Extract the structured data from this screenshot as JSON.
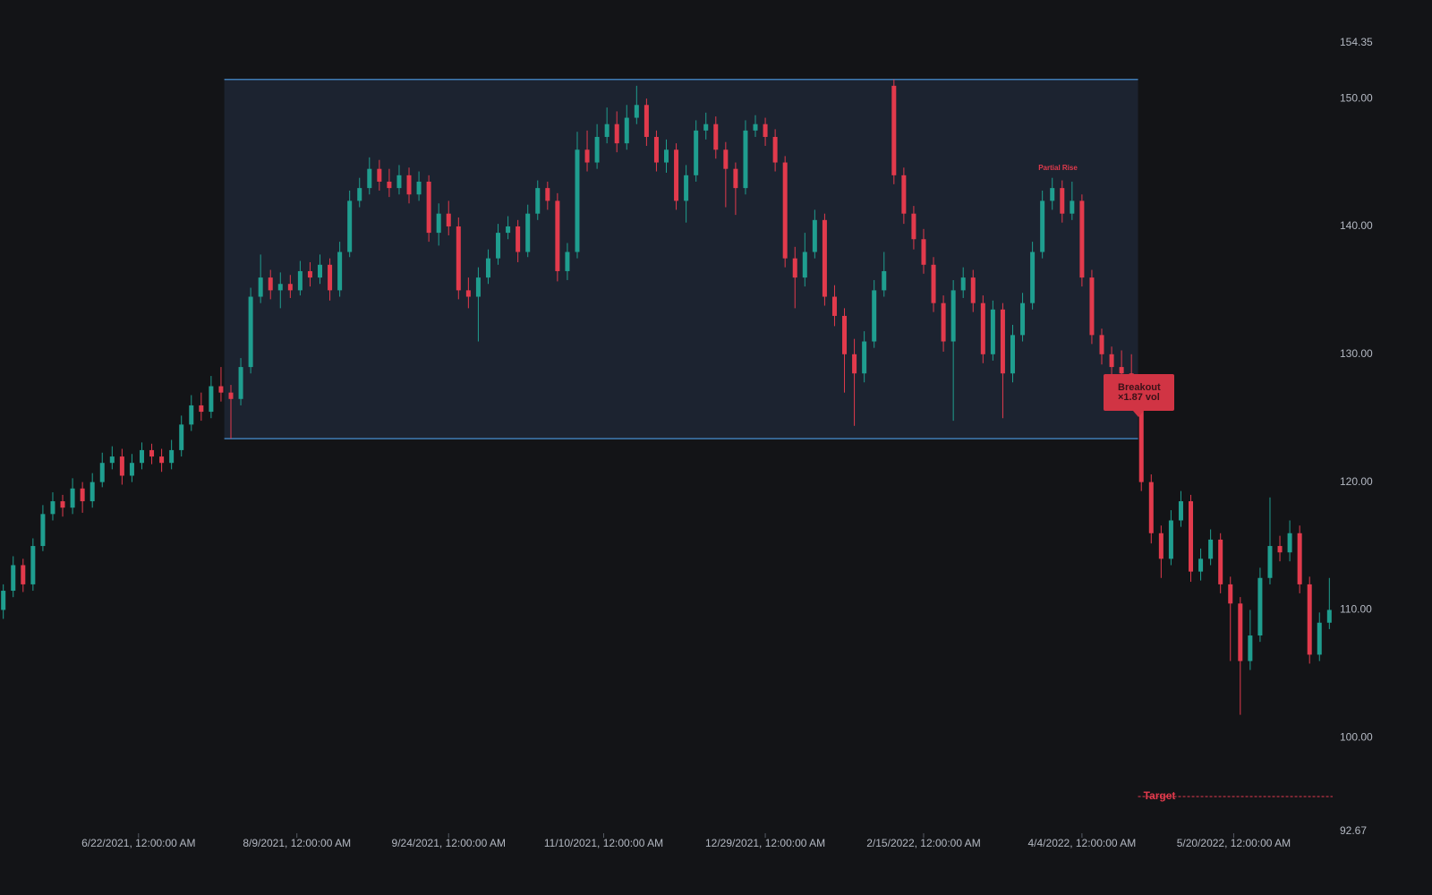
{
  "chart_data": {
    "type": "candlestick",
    "x": [
      "2021-05-12",
      "2021-05-15",
      "2021-05-18",
      "2021-05-21",
      "2021-05-24",
      "2021-05-27",
      "2021-05-30",
      "2021-06-02",
      "2021-06-05",
      "2021-06-08",
      "2021-06-11",
      "2021-06-14",
      "2021-06-17",
      "2021-06-20",
      "2021-06-23",
      "2021-06-26",
      "2021-06-29",
      "2021-07-02",
      "2021-07-05",
      "2021-07-08",
      "2021-07-11",
      "2021-07-14",
      "2021-07-17",
      "2021-07-20",
      "2021-07-23",
      "2021-07-26",
      "2021-07-29",
      "2021-08-01",
      "2021-08-04",
      "2021-08-07",
      "2021-08-10",
      "2021-08-13",
      "2021-08-16",
      "2021-08-19",
      "2021-08-22",
      "2021-08-25",
      "2021-08-28",
      "2021-08-31",
      "2021-09-03",
      "2021-09-06",
      "2021-09-09",
      "2021-09-12",
      "2021-09-15",
      "2021-09-18",
      "2021-09-21",
      "2021-09-24",
      "2021-09-27",
      "2021-09-30",
      "2021-10-03",
      "2021-10-06",
      "2021-10-09",
      "2021-10-12",
      "2021-10-15",
      "2021-10-18",
      "2021-10-21",
      "2021-10-24",
      "2021-10-27",
      "2021-10-30",
      "2021-11-02",
      "2021-11-05",
      "2021-11-08",
      "2021-11-11",
      "2021-11-14",
      "2021-11-17",
      "2021-11-20",
      "2021-11-23",
      "2021-11-26",
      "2021-11-29",
      "2021-12-02",
      "2021-12-05",
      "2021-12-08",
      "2021-12-11",
      "2021-12-14",
      "2021-12-17",
      "2021-12-20",
      "2021-12-23",
      "2021-12-26",
      "2021-12-29",
      "2022-01-01",
      "2022-01-04",
      "2022-01-07",
      "2022-01-10",
      "2022-01-13",
      "2022-01-16",
      "2022-01-19",
      "2022-01-22",
      "2022-01-25",
      "2022-01-28",
      "2022-01-31",
      "2022-02-03",
      "2022-02-06",
      "2022-02-09",
      "2022-02-12",
      "2022-02-15",
      "2022-02-18",
      "2022-02-21",
      "2022-02-24",
      "2022-02-27",
      "2022-03-02",
      "2022-03-05",
      "2022-03-08",
      "2022-03-11",
      "2022-03-14",
      "2022-03-17",
      "2022-03-20",
      "2022-03-23",
      "2022-03-26",
      "2022-03-29",
      "2022-04-01",
      "2022-04-04",
      "2022-04-07",
      "2022-04-10",
      "2022-04-13",
      "2022-04-16",
      "2022-04-19",
      "2022-04-22",
      "2022-04-25",
      "2022-04-28",
      "2022-05-01",
      "2022-05-04",
      "2022-05-07",
      "2022-05-10",
      "2022-05-13",
      "2022-05-16",
      "2022-05-19",
      "2022-05-22",
      "2022-05-25",
      "2022-05-28",
      "2022-05-31",
      "2022-06-03",
      "2022-06-06",
      "2022-06-09",
      "2022-06-12",
      "2022-06-15",
      "2022-06-18"
    ],
    "open": [
      110,
      111.5,
      113.5,
      112,
      115,
      117.5,
      118.5,
      118,
      119.5,
      118.5,
      120,
      121.5,
      122,
      120.5,
      121.5,
      122.5,
      122,
      121.5,
      122.5,
      124.5,
      126,
      125.5,
      127.5,
      127,
      126.5,
      129,
      134.5,
      136,
      135,
      135.5,
      135,
      136.5,
      136,
      137,
      135,
      138,
      142,
      143,
      144.5,
      143.5,
      143,
      144,
      142.5,
      143.5,
      139.5,
      141,
      140,
      135,
      134.5,
      136,
      137.5,
      139.5,
      140,
      138,
      141,
      143,
      142,
      136.5,
      138,
      146,
      145,
      147,
      148,
      146.5,
      148.5,
      149.5,
      147,
      145,
      146,
      142,
      144,
      147.5,
      148,
      146,
      144.5,
      143,
      147.5,
      148,
      147,
      145,
      137.5,
      136,
      138,
      140.5,
      134.5,
      133,
      130,
      128.5,
      131,
      135,
      151,
      144,
      141,
      139,
      137,
      134,
      131,
      135,
      136,
      134,
      130,
      133.5,
      128.5,
      131.5,
      134,
      138,
      142,
      143,
      141,
      142,
      136,
      131.5,
      130,
      129,
      128.5,
      127.5,
      120,
      116,
      114,
      117,
      118.5,
      113,
      114,
      115.5,
      112,
      110.5,
      106,
      108,
      112.5,
      115,
      114.5,
      116,
      112,
      106.5,
      109
    ],
    "high": [
      112,
      114.2,
      114,
      115.6,
      118.2,
      119.2,
      119,
      120.3,
      120,
      120.7,
      122.3,
      122.8,
      122.6,
      122.2,
      123.1,
      123,
      122.6,
      123.3,
      125.2,
      126.8,
      127,
      128.3,
      129,
      127.6,
      129.7,
      135.2,
      137.8,
      136.6,
      136.4,
      136.2,
      137.3,
      137.2,
      137.8,
      137.5,
      138.8,
      142.8,
      143.8,
      145.4,
      145.2,
      144.5,
      144.8,
      144.6,
      144.3,
      144,
      141.8,
      142,
      140.7,
      136,
      136.8,
      138.2,
      140.2,
      140.8,
      140.5,
      141.7,
      143.6,
      143.5,
      142.6,
      138.7,
      147.4,
      147.5,
      148,
      149.3,
      149,
      149.5,
      151,
      150,
      147.5,
      146.8,
      146.5,
      144.8,
      148.3,
      148.9,
      148.6,
      146.6,
      145,
      148.3,
      148.7,
      148.5,
      147.6,
      145.5,
      138.4,
      139.5,
      141.3,
      141,
      135.4,
      133.6,
      131.2,
      131.8,
      135.8,
      138,
      151.5,
      144.6,
      141.6,
      139.8,
      137.6,
      134.6,
      135.8,
      136.8,
      136.6,
      134.6,
      134.2,
      134,
      132.3,
      134.8,
      138.8,
      142.8,
      143.8,
      143.6,
      143.5,
      142.5,
      136.6,
      132,
      130.6,
      130.3,
      130,
      128,
      120.6,
      116.6,
      117.8,
      119.3,
      119,
      114.8,
      116.3,
      116,
      112.6,
      111,
      110,
      113.3,
      118.8,
      115.8,
      117,
      116.6,
      112.6,
      109.8,
      112.5
    ],
    "low": [
      109.3,
      111,
      111.4,
      111.5,
      114.6,
      117,
      117.3,
      117.5,
      117.6,
      118,
      119.6,
      121,
      119.8,
      120,
      121,
      121.4,
      120.8,
      121,
      122,
      124,
      124.8,
      125,
      126.3,
      123.4,
      126,
      128.5,
      134,
      134.3,
      133.6,
      134.4,
      134.6,
      135.3,
      135.5,
      134.2,
      134.5,
      137.6,
      141.5,
      142.5,
      142.8,
      142.3,
      142.5,
      141.8,
      142,
      138.8,
      138.5,
      139.3,
      134.3,
      133.6,
      131,
      135.5,
      137,
      139,
      137.2,
      137.6,
      140.5,
      141.3,
      135.7,
      135.8,
      137.5,
      144.3,
      144.5,
      146.5,
      145.8,
      146,
      148,
      146.3,
      144.3,
      144.2,
      141.3,
      140.3,
      143.5,
      146.8,
      145.3,
      141.5,
      140.9,
      142.5,
      147,
      146.3,
      144.3,
      136.8,
      133.6,
      135.3,
      137.5,
      133.8,
      132.2,
      127,
      124.4,
      127.8,
      130.5,
      134.5,
      143.3,
      140.2,
      138.2,
      136.3,
      133.3,
      130.2,
      124.8,
      134.4,
      133.3,
      129.3,
      129.5,
      125,
      127.8,
      131,
      133.5,
      137.5,
      141.3,
      140.3,
      140.5,
      135.3,
      130.8,
      129.2,
      127.8,
      127.5,
      126.2,
      119.3,
      115.2,
      112.5,
      113.5,
      116.5,
      112.2,
      112.3,
      113.5,
      111.3,
      106,
      101.8,
      105.3,
      107.5,
      112,
      113.8,
      113.8,
      111.3,
      105.8,
      106,
      108.5
    ],
    "close": [
      111.5,
      113.5,
      112,
      115,
      117.5,
      118.5,
      118,
      119.5,
      118.5,
      120,
      121.5,
      122,
      120.5,
      121.5,
      122.5,
      122,
      121.5,
      122.5,
      124.5,
      126,
      125.5,
      127.5,
      127,
      126.5,
      129,
      134.5,
      136,
      135,
      135.5,
      135,
      136.5,
      136,
      137,
      135,
      138,
      142,
      143,
      144.5,
      143.5,
      143,
      144,
      142.5,
      143.5,
      139.5,
      141,
      140,
      135,
      134.5,
      136,
      137.5,
      139.5,
      140,
      138,
      141,
      143,
      142,
      136.5,
      138,
      146,
      145,
      147,
      148,
      146.5,
      148.5,
      149.5,
      147,
      145,
      146,
      142,
      144,
      147.5,
      148,
      146,
      144.5,
      143,
      147.5,
      148,
      147,
      145,
      137.5,
      136,
      138,
      140.5,
      134.5,
      133,
      130,
      128.5,
      131,
      135,
      136.5,
      144,
      141,
      139,
      137,
      134,
      131,
      135,
      136,
      134,
      130,
      133.5,
      128.5,
      131.5,
      134,
      138,
      142,
      143,
      141,
      142,
      136,
      131.5,
      130,
      129,
      128.5,
      127.5,
      120,
      116,
      114,
      117,
      118.5,
      113,
      114,
      115.5,
      112,
      110.5,
      106,
      108,
      112.5,
      115,
      114.5,
      116,
      112,
      106.5,
      109,
      110
    ],
    "up_color": "#1f9e8f",
    "down_color": "#e23a4c",
    "xlim": [
      "2021-05-11",
      "2022-06-19"
    ],
    "xticks": [
      {
        "value": "2021-06-22",
        "label": "6/22/2021, 12:00:00 AM"
      },
      {
        "value": "2021-08-09",
        "label": "8/9/2021, 12:00:00 AM"
      },
      {
        "value": "2021-09-24",
        "label": "9/24/2021, 12:00:00 AM"
      },
      {
        "value": "2021-11-10",
        "label": "11/10/2021, 12:00:00 AM"
      },
      {
        "value": "2021-12-29",
        "label": "12/29/2021, 12:00:00 AM"
      },
      {
        "value": "2022-02-15",
        "label": "2/15/2022, 12:00:00 AM"
      },
      {
        "value": "2022-04-04",
        "label": "4/4/2022, 12:00:00 AM"
      },
      {
        "value": "2022-05-20",
        "label": "5/20/2022, 12:00:00 AM"
      }
    ],
    "ylim": [
      92.67,
      154.35
    ],
    "yticks": [
      92.67,
      {
        "value": 100,
        "label": "100.00"
      },
      {
        "value": 110,
        "label": "110.00"
      },
      {
        "value": 120,
        "label": "120.00"
      },
      {
        "value": 130,
        "label": "130.00"
      },
      {
        "value": 140,
        "label": "140.00"
      },
      {
        "value": 150,
        "label": "150.00"
      },
      154.35
    ],
    "range_box": {
      "start": "2021-07-18",
      "end": "2022-04-21",
      "high": 151.5,
      "low": 123.4,
      "color": "#3f7cb5"
    },
    "target": {
      "value": 95.4,
      "label": "Target"
    },
    "partial_rise_label": "Partial Rise",
    "breakout": {
      "title": "Breakout",
      "volume": "×1.87 vol"
    }
  }
}
